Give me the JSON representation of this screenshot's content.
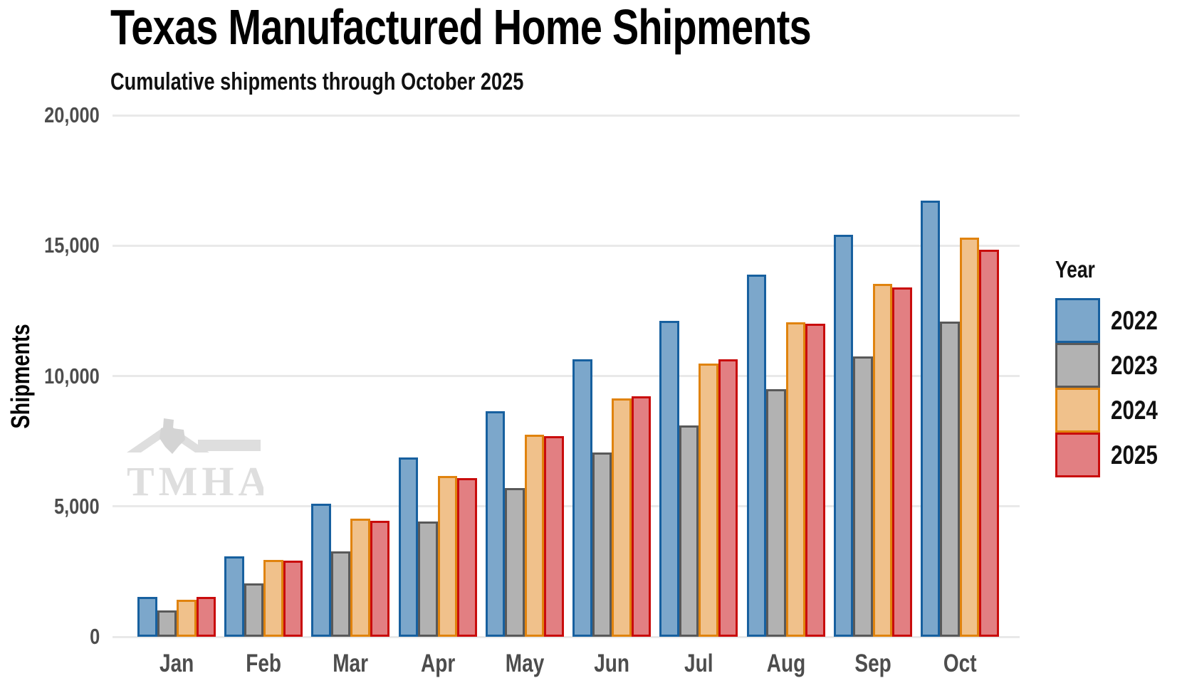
{
  "watermark": "TMHA",
  "chart_data": {
    "type": "bar",
    "title": "Texas Manufactured Home Shipments",
    "subtitle": "Cumulative shipments through October 2025",
    "xlabel": "",
    "ylabel": "Shipments",
    "legend_title": "Year",
    "legend_position": "right",
    "grid": "horizontal-only",
    "background": "#FFFFFF",
    "gridline_color": "#E9E9E9",
    "axis_text_color": "#4D4D4D",
    "ylim": [
      0,
      20000
    ],
    "yticks": [
      {
        "value": 0,
        "label": "0"
      },
      {
        "value": 5000,
        "label": "5,000"
      },
      {
        "value": 10000,
        "label": "10,000"
      },
      {
        "value": 15000,
        "label": "15,000"
      },
      {
        "value": 20000,
        "label": "20,000"
      }
    ],
    "categories": [
      "Jan",
      "Feb",
      "Mar",
      "Apr",
      "May",
      "Jun",
      "Jul",
      "Aug",
      "Sep",
      "Oct"
    ],
    "series": [
      {
        "name": "2022",
        "fill": "#7CA7CB",
        "stroke": "#17609F",
        "values": [
          1530,
          3090,
          5110,
          6870,
          8640,
          10640,
          12120,
          13900,
          15420,
          16730
        ]
      },
      {
        "name": "2023",
        "fill": "#B2B2B2",
        "stroke": "#595959",
        "values": [
          1020,
          2040,
          3280,
          4410,
          5700,
          7080,
          8110,
          9500,
          10740,
          12080
        ]
      },
      {
        "name": "2024",
        "fill": "#F0C18B",
        "stroke": "#E0830E",
        "values": [
          1430,
          2960,
          4530,
          6160,
          7760,
          9140,
          10480,
          12070,
          13530,
          15310
        ]
      },
      {
        "name": "2025",
        "fill": "#E27F82",
        "stroke": "#C90C0C",
        "values": [
          1520,
          2930,
          4440,
          6090,
          7690,
          9210,
          10630,
          12010,
          13410,
          14840
        ]
      }
    ]
  }
}
